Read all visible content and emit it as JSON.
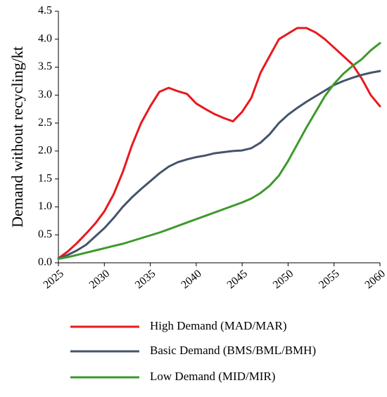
{
  "chart_data": {
    "type": "line",
    "title": "",
    "xlabel": "",
    "ylabel": "Demand without recycling/kt",
    "xlim": [
      2025,
      2060
    ],
    "ylim": [
      0,
      4.5
    ],
    "x_ticks": [
      "2025",
      "2030",
      "2035",
      "2040",
      "2045",
      "2050",
      "2055",
      "2060"
    ],
    "y_ticks": [
      "0.0",
      "0.5",
      "1.0",
      "1.5",
      "2.0",
      "2.5",
      "3.0",
      "3.5",
      "4.0",
      "4.5"
    ],
    "grid": false,
    "legend_position": "bottom",
    "series": [
      {
        "name": "High Demand (MAD/MAR)",
        "color": "#e8191e",
        "x": [
          2025,
          2026,
          2027,
          2028,
          2029,
          2030,
          2031,
          2032,
          2033,
          2034,
          2035,
          2036,
          2037,
          2038,
          2039,
          2040,
          2041,
          2042,
          2043,
          2044,
          2045,
          2046,
          2047,
          2048,
          2049,
          2050,
          2051,
          2052,
          2053,
          2054,
          2055,
          2056,
          2057,
          2058,
          2059,
          2060
        ],
        "values": [
          0.08,
          0.2,
          0.35,
          0.52,
          0.7,
          0.92,
          1.22,
          1.62,
          2.1,
          2.5,
          2.8,
          3.06,
          3.13,
          3.07,
          3.02,
          2.85,
          2.75,
          2.66,
          2.59,
          2.53,
          2.7,
          2.95,
          3.4,
          3.7,
          4.0,
          4.1,
          4.2,
          4.2,
          4.12,
          4.0,
          3.85,
          3.7,
          3.55,
          3.3,
          3.0,
          2.8
        ]
      },
      {
        "name": "Basic Demand (BMS/BML/BMH)",
        "color": "#44546a",
        "x": [
          2025,
          2026,
          2027,
          2028,
          2029,
          2030,
          2031,
          2032,
          2033,
          2034,
          2035,
          2036,
          2037,
          2038,
          2039,
          2040,
          2041,
          2042,
          2043,
          2044,
          2045,
          2046,
          2047,
          2048,
          2049,
          2050,
          2051,
          2052,
          2053,
          2054,
          2055,
          2056,
          2057,
          2058,
          2059,
          2060
        ],
        "values": [
          0.07,
          0.14,
          0.22,
          0.32,
          0.47,
          0.62,
          0.8,
          1.0,
          1.17,
          1.32,
          1.46,
          1.6,
          1.72,
          1.8,
          1.85,
          1.89,
          1.92,
          1.96,
          1.98,
          2.0,
          2.01,
          2.05,
          2.15,
          2.3,
          2.5,
          2.65,
          2.77,
          2.88,
          2.98,
          3.08,
          3.18,
          3.25,
          3.31,
          3.36,
          3.4,
          3.43
        ]
      },
      {
        "name": "Low Demand (MID/MIR)",
        "color": "#3d9a2b",
        "x": [
          2025,
          2026,
          2027,
          2028,
          2029,
          2030,
          2031,
          2032,
          2033,
          2034,
          2035,
          2036,
          2037,
          2038,
          2039,
          2040,
          2041,
          2042,
          2043,
          2044,
          2045,
          2046,
          2047,
          2048,
          2049,
          2050,
          2051,
          2052,
          2053,
          2054,
          2055,
          2056,
          2057,
          2058,
          2059,
          2060
        ],
        "values": [
          0.07,
          0.1,
          0.14,
          0.18,
          0.22,
          0.26,
          0.3,
          0.34,
          0.39,
          0.44,
          0.49,
          0.54,
          0.6,
          0.66,
          0.72,
          0.78,
          0.84,
          0.9,
          0.96,
          1.02,
          1.08,
          1.15,
          1.25,
          1.38,
          1.56,
          1.82,
          2.12,
          2.42,
          2.7,
          2.98,
          3.2,
          3.38,
          3.52,
          3.64,
          3.8,
          3.93
        ]
      }
    ]
  }
}
